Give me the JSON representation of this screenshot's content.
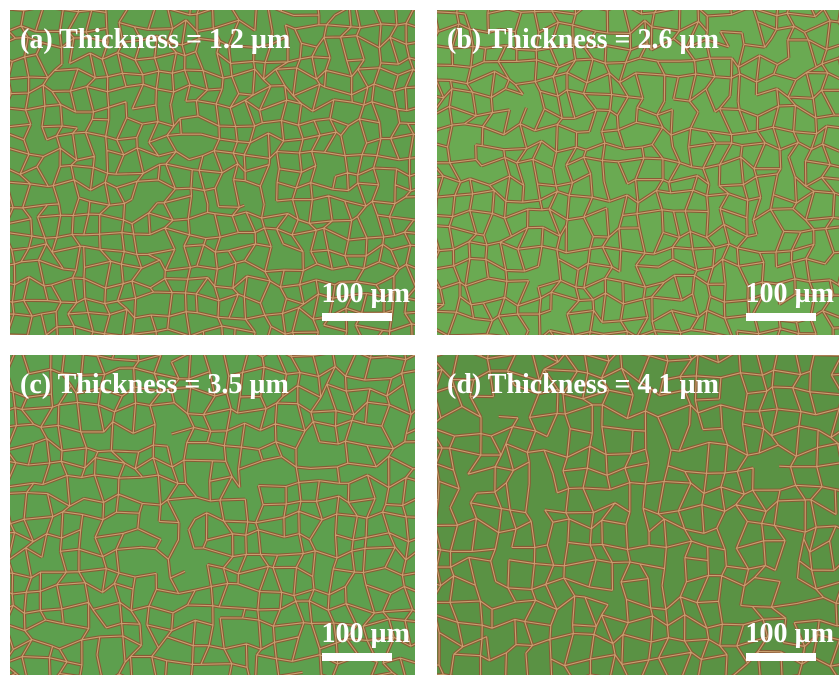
{
  "panels": [
    {
      "label": "(a) Thickness = 1.2 µm",
      "scale_bar": "100 µm"
    },
    {
      "label": "(b) Thickness = 2.6 µm",
      "scale_bar": "100 µm"
    },
    {
      "label": "(c) Thickness = 3.5 µm",
      "scale_bar": "100 µm"
    },
    {
      "label": "(d) Thickness = 4.1 µm",
      "scale_bar": "100 µm"
    }
  ]
}
